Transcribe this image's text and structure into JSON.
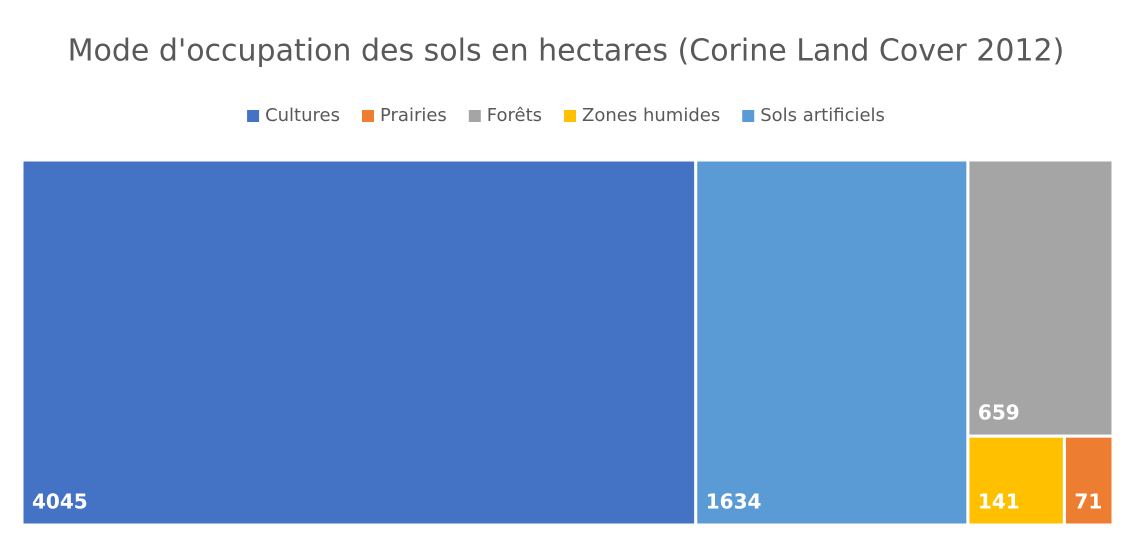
{
  "chart_data": {
    "type": "treemap",
    "title": "Mode d'occupation des sols en hectares (Corine Land Cover 2012)",
    "categories": [
      "Cultures",
      "Prairies",
      "Forêts",
      "Zones humides",
      "Sols artificiels"
    ],
    "values": [
      4045,
      71,
      659,
      141,
      1634
    ],
    "colors": [
      "#4472c4",
      "#ed7d31",
      "#a5a5a5",
      "#ffc000",
      "#5b9bd5"
    ],
    "legend": "top"
  }
}
